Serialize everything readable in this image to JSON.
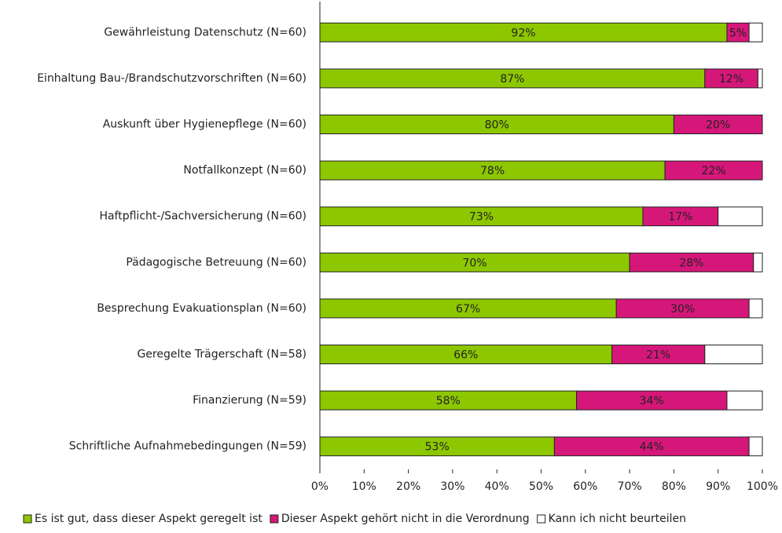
{
  "chart_data": {
    "type": "stacked-bar-horizontal",
    "categories": [
      "Gewährleistung Datenschutz (N=60)",
      "Einhaltung Bau-/Brandschutzvorschriften (N=60)",
      "Auskunft über Hygienepflege (N=60)",
      "Notfallkonzept (N=60)",
      "Haftpflicht-/Sachversicherung (N=60)",
      "Pädagogische Betreuung (N=60)",
      "Besprechung Evakuationsplan (N=60)",
      "Geregelte Trägerschaft (N=58)",
      "Finanzierung (N=59)",
      "Schriftliche Aufnahmebedingungen (N=59)"
    ],
    "series": [
      {
        "name": "Es ist gut, dass dieser Aspekt geregelt ist",
        "color": "#8dc700",
        "values": [
          92,
          87,
          80,
          78,
          73,
          70,
          67,
          66,
          58,
          53
        ],
        "value_labels": [
          "92%",
          "87%",
          "80%",
          "78%",
          "73%",
          "70%",
          "67%",
          "66%",
          "58%",
          "53%"
        ]
      },
      {
        "name": "Dieser Aspekt gehört nicht in die Verordnung",
        "color": "#d6177a",
        "values": [
          5,
          12,
          20,
          22,
          17,
          28,
          30,
          21,
          34,
          44
        ],
        "value_labels": [
          "5%",
          "12%",
          "20%",
          "22%",
          "17%",
          "28%",
          "30%",
          "21%",
          "34%",
          "44%"
        ]
      },
      {
        "name": "Kann ich nicht beurteilen",
        "color": "#ffffff",
        "values": [
          3,
          1,
          0,
          0,
          10,
          2,
          3,
          13,
          8,
          3
        ]
      }
    ],
    "xlim": [
      0,
      100
    ],
    "xticks": [
      {
        "value": 0,
        "label": "0%"
      },
      {
        "value": 10,
        "label": "10%"
      },
      {
        "value": 20,
        "label": "20%"
      },
      {
        "value": 30,
        "label": "30%"
      },
      {
        "value": 40,
        "label": "40%"
      },
      {
        "value": 50,
        "label": "50%"
      },
      {
        "value": 60,
        "label": "60%"
      },
      {
        "value": 70,
        "label": "70%"
      },
      {
        "value": 80,
        "label": "80%"
      },
      {
        "value": 90,
        "label": "90%"
      },
      {
        "value": 100,
        "label": "100%"
      }
    ],
    "legend": "bottom"
  }
}
